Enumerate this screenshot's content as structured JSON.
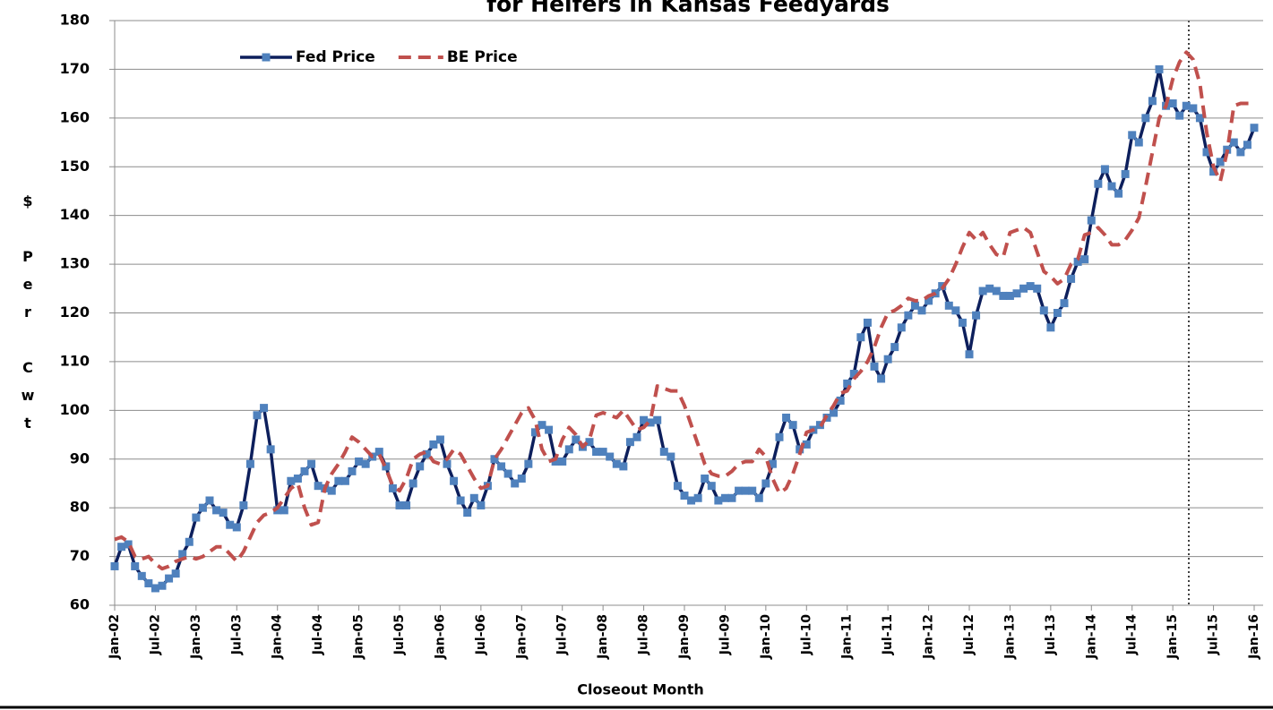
{
  "chart_data": {
    "type": "line",
    "title": "for Heifers in Kansas Feedyards",
    "xlabel": "Closeout Month",
    "ylabel": "$ Per Cwt",
    "categories": [
      "Jan-02",
      null,
      null,
      null,
      null,
      null,
      "Jul-02",
      null,
      null,
      null,
      null,
      null,
      "Jan-03",
      null,
      null,
      null,
      null,
      null,
      "Jul-03",
      null,
      null,
      null,
      null,
      null,
      "Jan-04",
      null,
      null,
      null,
      null,
      null,
      "Jul-04",
      null,
      null,
      null,
      null,
      null,
      "Jan-05",
      null,
      null,
      null,
      null,
      null,
      "Jul-05",
      null,
      null,
      null,
      null,
      null,
      "Jan-06",
      null,
      null,
      null,
      null,
      null,
      "Jul-06",
      null,
      null,
      null,
      null,
      null,
      "Jan-07",
      null,
      null,
      null,
      null,
      null,
      "Jul-07",
      null,
      null,
      null,
      null,
      null,
      "Jan-08",
      null,
      null,
      null,
      null,
      null,
      "Jul-08",
      null,
      null,
      null,
      null,
      null,
      "Jan-09",
      null,
      null,
      null,
      null,
      null,
      "Jul-09",
      null,
      null,
      null,
      null,
      null,
      "Jan-10",
      null,
      null,
      null,
      null,
      null,
      "Jul-10",
      null,
      null,
      null,
      null,
      null,
      "Jan-11",
      null,
      null,
      null,
      null,
      null,
      "Jul-11",
      null,
      null,
      null,
      null,
      null,
      "Jan-12",
      null,
      null,
      null,
      null,
      null,
      "Jul-12",
      null,
      null,
      null,
      null,
      null,
      "Jan-13",
      null,
      null,
      null,
      null,
      null,
      "Jul-13",
      null,
      null,
      null,
      null,
      null,
      "Jan-14",
      null,
      null,
      null,
      null,
      null,
      "Jul-14",
      null,
      null,
      null,
      null,
      null,
      "Jan-15",
      null,
      null,
      null,
      null,
      null,
      "Jul-15",
      null,
      null,
      null,
      null,
      null,
      "Jan-16"
    ],
    "series": [
      {
        "name": "Fed Price",
        "color": "#0d1f5c",
        "marker_color": "#4f81bd",
        "style": "solid",
        "values": [
          68,
          72,
          72.5,
          68,
          66,
          64.5,
          63.5,
          64,
          65.5,
          66.5,
          70.5,
          73,
          78,
          80,
          81.5,
          79.5,
          79,
          76.5,
          76,
          80.5,
          89,
          99,
          100.5,
          92,
          79.5,
          79.5,
          85.5,
          86,
          87.5,
          89,
          84.5,
          84,
          83.5,
          85.5,
          85.5,
          87.5,
          89.5,
          89,
          90.5,
          91.5,
          88.5,
          84,
          80.5,
          80.5,
          85,
          88.5,
          91,
          93,
          94,
          89,
          85.5,
          81.5,
          79,
          82,
          80.5,
          84.5,
          90,
          88.5,
          87,
          85,
          86,
          89,
          95.5,
          97,
          96,
          89.5,
          89.5,
          92,
          94,
          92.5,
          93.5,
          91.5,
          91.5,
          90.5,
          89,
          88.5,
          93.5,
          94.5,
          98,
          97.5,
          98,
          91.5,
          90.5,
          84.5,
          82.5,
          81.5,
          82,
          86,
          84.5,
          81.5,
          82,
          82,
          83.5,
          83.5,
          83.5,
          82,
          85,
          89,
          94.5,
          98.5,
          97,
          92,
          93,
          96,
          97,
          98.5,
          99.5,
          102,
          105.5,
          107.5,
          115,
          118,
          109,
          106.5,
          110.5,
          113,
          117,
          119.5,
          121.5,
          120.5,
          122.5,
          124,
          125.5,
          121.5,
          120.5,
          118,
          111.5,
          119.5,
          124.5,
          125,
          124.5,
          123.5,
          123.5,
          124,
          125,
          125.5,
          125,
          120.5,
          117,
          120,
          122,
          127,
          130.5,
          131,
          139,
          146.5,
          149.5,
          146,
          144.5,
          148.5,
          156.5,
          155,
          160,
          163.5,
          170,
          162.5,
          163,
          160.5,
          162.5,
          162,
          160,
          153,
          149,
          151,
          153.5,
          155,
          153,
          154.5,
          158
        ]
      },
      {
        "name": "BE Price",
        "color": "#c0504d",
        "style": "dashed",
        "values": [
          73.5,
          74,
          73,
          70,
          69.5,
          70,
          68.5,
          67.5,
          68,
          69,
          69.5,
          70,
          69.5,
          70,
          71,
          72,
          72,
          70.5,
          69,
          71,
          74,
          77,
          78.5,
          79,
          80,
          82,
          84,
          85,
          80,
          76.5,
          77,
          84,
          87,
          89,
          91.5,
          94.5,
          93.5,
          92,
          90.5,
          91,
          88,
          84.5,
          83.5,
          86,
          90,
          91,
          91.5,
          89.5,
          89,
          90,
          92,
          91,
          88.5,
          86,
          84,
          84.5,
          90,
          92,
          94.5,
          97,
          99.5,
          100.5,
          98,
          92,
          89.5,
          90,
          94,
          96.5,
          95,
          92.5,
          94,
          99,
          99.5,
          99,
          98.5,
          100,
          98,
          96,
          96.5,
          98,
          105,
          104.5,
          104,
          104,
          101,
          97,
          93,
          89,
          87,
          86.5,
          86.5,
          87.5,
          89,
          89.5,
          89.5,
          92,
          90.5,
          86,
          83,
          84,
          87,
          91,
          95.5,
          96,
          96.5,
          99,
          101,
          103.5,
          104,
          106.5,
          108,
          110,
          113,
          117,
          120,
          120.5,
          121.5,
          123,
          122.5,
          122.5,
          123.5,
          124,
          125,
          127,
          130,
          133.5,
          136.5,
          135,
          136.5,
          134,
          132,
          131.5,
          136.5,
          137,
          137.5,
          136.5,
          132.5,
          128.5,
          127.5,
          126,
          127,
          130,
          131,
          136,
          136.5,
          137.5,
          136,
          134,
          134,
          135,
          137,
          139.5,
          146,
          153,
          160,
          162.5,
          168,
          171.5,
          173.5,
          172,
          167,
          157,
          150,
          147,
          153,
          162.5,
          163,
          163,
          163
        ]
      }
    ],
    "ylim": [
      60,
      180
    ],
    "yticks": [
      60,
      70,
      80,
      90,
      100,
      110,
      120,
      130,
      140,
      150,
      160,
      170,
      180
    ],
    "grid": true,
    "legend": "upper left"
  }
}
